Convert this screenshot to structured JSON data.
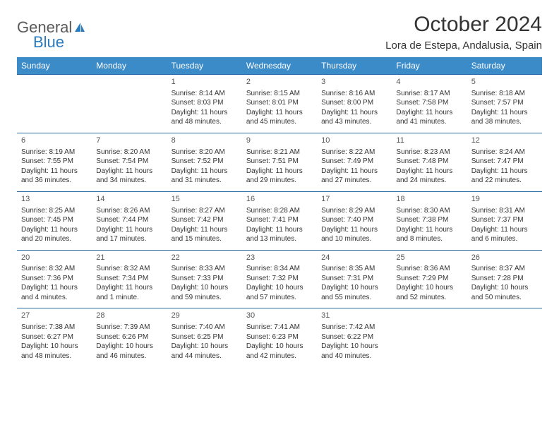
{
  "brand": {
    "part1": "General",
    "part2": "Blue"
  },
  "title": "October 2024",
  "location": "Lora de Estepa, Andalusia, Spain",
  "colors": {
    "header_bg": "#3b8bc9",
    "header_text": "#ffffff",
    "cell_border": "#2b6ca3",
    "text": "#333333",
    "brand_gray": "#5a5a5a",
    "brand_blue": "#2b7bbf",
    "page_bg": "#ffffff"
  },
  "day_headers": [
    "Sunday",
    "Monday",
    "Tuesday",
    "Wednesday",
    "Thursday",
    "Friday",
    "Saturday"
  ],
  "weeks": [
    [
      null,
      null,
      {
        "n": "1",
        "sr": "Sunrise: 8:14 AM",
        "ss": "Sunset: 8:03 PM",
        "d1": "Daylight: 11 hours",
        "d2": "and 48 minutes."
      },
      {
        "n": "2",
        "sr": "Sunrise: 8:15 AM",
        "ss": "Sunset: 8:01 PM",
        "d1": "Daylight: 11 hours",
        "d2": "and 45 minutes."
      },
      {
        "n": "3",
        "sr": "Sunrise: 8:16 AM",
        "ss": "Sunset: 8:00 PM",
        "d1": "Daylight: 11 hours",
        "d2": "and 43 minutes."
      },
      {
        "n": "4",
        "sr": "Sunrise: 8:17 AM",
        "ss": "Sunset: 7:58 PM",
        "d1": "Daylight: 11 hours",
        "d2": "and 41 minutes."
      },
      {
        "n": "5",
        "sr": "Sunrise: 8:18 AM",
        "ss": "Sunset: 7:57 PM",
        "d1": "Daylight: 11 hours",
        "d2": "and 38 minutes."
      }
    ],
    [
      {
        "n": "6",
        "sr": "Sunrise: 8:19 AM",
        "ss": "Sunset: 7:55 PM",
        "d1": "Daylight: 11 hours",
        "d2": "and 36 minutes."
      },
      {
        "n": "7",
        "sr": "Sunrise: 8:20 AM",
        "ss": "Sunset: 7:54 PM",
        "d1": "Daylight: 11 hours",
        "d2": "and 34 minutes."
      },
      {
        "n": "8",
        "sr": "Sunrise: 8:20 AM",
        "ss": "Sunset: 7:52 PM",
        "d1": "Daylight: 11 hours",
        "d2": "and 31 minutes."
      },
      {
        "n": "9",
        "sr": "Sunrise: 8:21 AM",
        "ss": "Sunset: 7:51 PM",
        "d1": "Daylight: 11 hours",
        "d2": "and 29 minutes."
      },
      {
        "n": "10",
        "sr": "Sunrise: 8:22 AM",
        "ss": "Sunset: 7:49 PM",
        "d1": "Daylight: 11 hours",
        "d2": "and 27 minutes."
      },
      {
        "n": "11",
        "sr": "Sunrise: 8:23 AM",
        "ss": "Sunset: 7:48 PM",
        "d1": "Daylight: 11 hours",
        "d2": "and 24 minutes."
      },
      {
        "n": "12",
        "sr": "Sunrise: 8:24 AM",
        "ss": "Sunset: 7:47 PM",
        "d1": "Daylight: 11 hours",
        "d2": "and 22 minutes."
      }
    ],
    [
      {
        "n": "13",
        "sr": "Sunrise: 8:25 AM",
        "ss": "Sunset: 7:45 PM",
        "d1": "Daylight: 11 hours",
        "d2": "and 20 minutes."
      },
      {
        "n": "14",
        "sr": "Sunrise: 8:26 AM",
        "ss": "Sunset: 7:44 PM",
        "d1": "Daylight: 11 hours",
        "d2": "and 17 minutes."
      },
      {
        "n": "15",
        "sr": "Sunrise: 8:27 AM",
        "ss": "Sunset: 7:42 PM",
        "d1": "Daylight: 11 hours",
        "d2": "and 15 minutes."
      },
      {
        "n": "16",
        "sr": "Sunrise: 8:28 AM",
        "ss": "Sunset: 7:41 PM",
        "d1": "Daylight: 11 hours",
        "d2": "and 13 minutes."
      },
      {
        "n": "17",
        "sr": "Sunrise: 8:29 AM",
        "ss": "Sunset: 7:40 PM",
        "d1": "Daylight: 11 hours",
        "d2": "and 10 minutes."
      },
      {
        "n": "18",
        "sr": "Sunrise: 8:30 AM",
        "ss": "Sunset: 7:38 PM",
        "d1": "Daylight: 11 hours",
        "d2": "and 8 minutes."
      },
      {
        "n": "19",
        "sr": "Sunrise: 8:31 AM",
        "ss": "Sunset: 7:37 PM",
        "d1": "Daylight: 11 hours",
        "d2": "and 6 minutes."
      }
    ],
    [
      {
        "n": "20",
        "sr": "Sunrise: 8:32 AM",
        "ss": "Sunset: 7:36 PM",
        "d1": "Daylight: 11 hours",
        "d2": "and 4 minutes."
      },
      {
        "n": "21",
        "sr": "Sunrise: 8:32 AM",
        "ss": "Sunset: 7:34 PM",
        "d1": "Daylight: 11 hours",
        "d2": "and 1 minute."
      },
      {
        "n": "22",
        "sr": "Sunrise: 8:33 AM",
        "ss": "Sunset: 7:33 PM",
        "d1": "Daylight: 10 hours",
        "d2": "and 59 minutes."
      },
      {
        "n": "23",
        "sr": "Sunrise: 8:34 AM",
        "ss": "Sunset: 7:32 PM",
        "d1": "Daylight: 10 hours",
        "d2": "and 57 minutes."
      },
      {
        "n": "24",
        "sr": "Sunrise: 8:35 AM",
        "ss": "Sunset: 7:31 PM",
        "d1": "Daylight: 10 hours",
        "d2": "and 55 minutes."
      },
      {
        "n": "25",
        "sr": "Sunrise: 8:36 AM",
        "ss": "Sunset: 7:29 PM",
        "d1": "Daylight: 10 hours",
        "d2": "and 52 minutes."
      },
      {
        "n": "26",
        "sr": "Sunrise: 8:37 AM",
        "ss": "Sunset: 7:28 PM",
        "d1": "Daylight: 10 hours",
        "d2": "and 50 minutes."
      }
    ],
    [
      {
        "n": "27",
        "sr": "Sunrise: 7:38 AM",
        "ss": "Sunset: 6:27 PM",
        "d1": "Daylight: 10 hours",
        "d2": "and 48 minutes."
      },
      {
        "n": "28",
        "sr": "Sunrise: 7:39 AM",
        "ss": "Sunset: 6:26 PM",
        "d1": "Daylight: 10 hours",
        "d2": "and 46 minutes."
      },
      {
        "n": "29",
        "sr": "Sunrise: 7:40 AM",
        "ss": "Sunset: 6:25 PM",
        "d1": "Daylight: 10 hours",
        "d2": "and 44 minutes."
      },
      {
        "n": "30",
        "sr": "Sunrise: 7:41 AM",
        "ss": "Sunset: 6:23 PM",
        "d1": "Daylight: 10 hours",
        "d2": "and 42 minutes."
      },
      {
        "n": "31",
        "sr": "Sunrise: 7:42 AM",
        "ss": "Sunset: 6:22 PM",
        "d1": "Daylight: 10 hours",
        "d2": "and 40 minutes."
      },
      null,
      null
    ]
  ]
}
